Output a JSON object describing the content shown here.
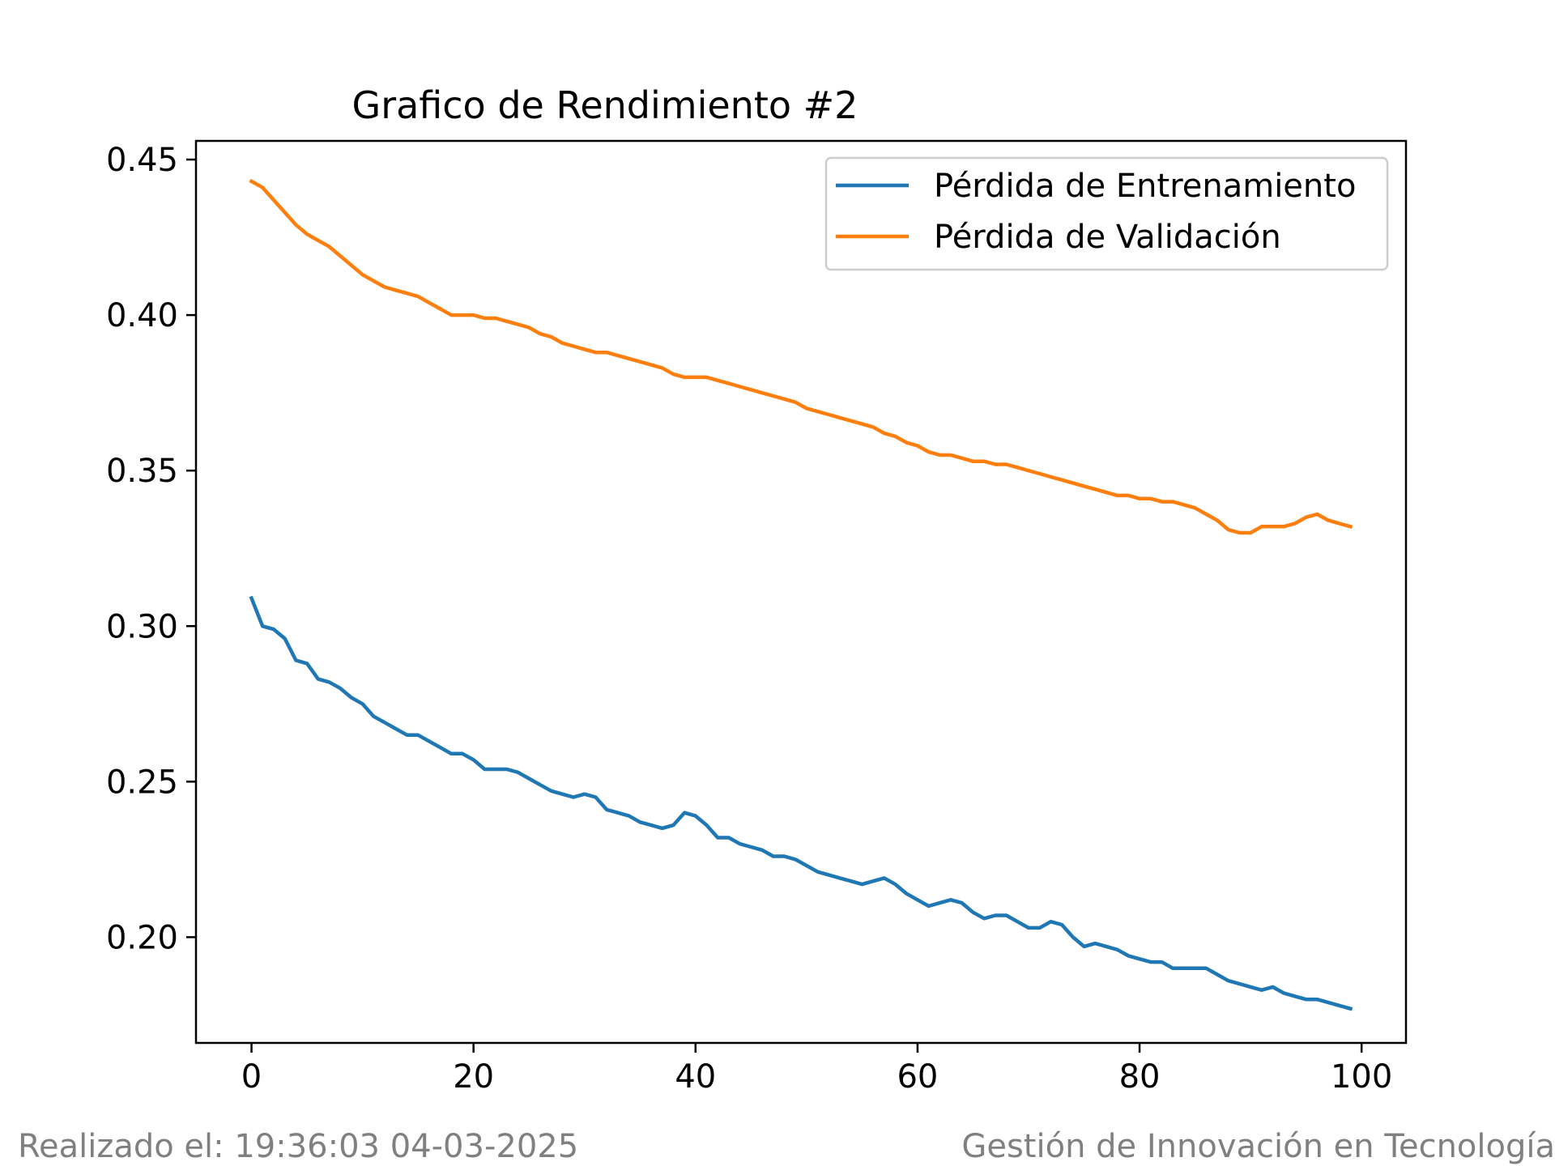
{
  "chart_data": {
    "type": "line",
    "title": "Grafico de Rendimiento #2",
    "xlabel": "",
    "ylabel": "",
    "xlim": [
      -5,
      104
    ],
    "ylim": [
      0.166,
      0.456
    ],
    "xticks": [
      0,
      20,
      40,
      60,
      80,
      100
    ],
    "yticks": [
      0.2,
      0.25,
      0.3,
      0.35,
      0.4,
      0.45
    ],
    "grid": false,
    "legend": "top-right",
    "x": [
      0,
      1,
      2,
      3,
      4,
      5,
      6,
      7,
      8,
      9,
      10,
      11,
      12,
      13,
      14,
      15,
      16,
      17,
      18,
      19,
      20,
      21,
      22,
      23,
      24,
      25,
      26,
      27,
      28,
      29,
      30,
      31,
      32,
      33,
      34,
      35,
      36,
      37,
      38,
      39,
      40,
      41,
      42,
      43,
      44,
      45,
      46,
      47,
      48,
      49,
      50,
      51,
      52,
      53,
      54,
      55,
      56,
      57,
      58,
      59,
      60,
      61,
      62,
      63,
      64,
      65,
      66,
      67,
      68,
      69,
      70,
      71,
      72,
      73,
      74,
      75,
      76,
      77,
      78,
      79,
      80,
      81,
      82,
      83,
      84,
      85,
      86,
      87,
      88,
      89,
      90,
      91,
      92,
      93,
      94,
      95,
      96,
      97,
      98,
      99
    ],
    "series": [
      {
        "name": "Pérdida de Entrenamiento",
        "color": "#1f77b4",
        "values": [
          0.309,
          0.3,
          0.299,
          0.296,
          0.289,
          0.288,
          0.283,
          0.282,
          0.28,
          0.277,
          0.275,
          0.271,
          0.269,
          0.267,
          0.265,
          0.265,
          0.263,
          0.261,
          0.259,
          0.259,
          0.257,
          0.254,
          0.254,
          0.254,
          0.253,
          0.251,
          0.249,
          0.247,
          0.246,
          0.245,
          0.246,
          0.245,
          0.241,
          0.24,
          0.239,
          0.237,
          0.236,
          0.235,
          0.236,
          0.24,
          0.239,
          0.236,
          0.232,
          0.232,
          0.23,
          0.229,
          0.228,
          0.226,
          0.226,
          0.225,
          0.223,
          0.221,
          0.22,
          0.219,
          0.218,
          0.217,
          0.218,
          0.219,
          0.217,
          0.214,
          0.212,
          0.21,
          0.211,
          0.212,
          0.211,
          0.208,
          0.206,
          0.207,
          0.207,
          0.205,
          0.203,
          0.203,
          0.205,
          0.204,
          0.2,
          0.197,
          0.198,
          0.197,
          0.196,
          0.194,
          0.193,
          0.192,
          0.192,
          0.19,
          0.19,
          0.19,
          0.19,
          0.188,
          0.186,
          0.185,
          0.184,
          0.183,
          0.184,
          0.182,
          0.181,
          0.18,
          0.18,
          0.179,
          0.178,
          0.177
        ]
      },
      {
        "name": "Pérdida de Validación",
        "color": "#ff7f0e",
        "values": [
          0.443,
          0.441,
          0.437,
          0.433,
          0.429,
          0.426,
          0.424,
          0.422,
          0.419,
          0.416,
          0.413,
          0.411,
          0.409,
          0.408,
          0.407,
          0.406,
          0.404,
          0.402,
          0.4,
          0.4,
          0.4,
          0.399,
          0.399,
          0.398,
          0.397,
          0.396,
          0.394,
          0.393,
          0.391,
          0.39,
          0.389,
          0.388,
          0.388,
          0.387,
          0.386,
          0.385,
          0.384,
          0.383,
          0.381,
          0.38,
          0.38,
          0.38,
          0.379,
          0.378,
          0.377,
          0.376,
          0.375,
          0.374,
          0.373,
          0.372,
          0.37,
          0.369,
          0.368,
          0.367,
          0.366,
          0.365,
          0.364,
          0.362,
          0.361,
          0.359,
          0.358,
          0.356,
          0.355,
          0.355,
          0.354,
          0.353,
          0.353,
          0.352,
          0.352,
          0.351,
          0.35,
          0.349,
          0.348,
          0.347,
          0.346,
          0.345,
          0.344,
          0.343,
          0.342,
          0.342,
          0.341,
          0.341,
          0.34,
          0.34,
          0.339,
          0.338,
          0.336,
          0.334,
          0.331,
          0.33,
          0.33,
          0.332,
          0.332,
          0.332,
          0.333,
          0.335,
          0.336,
          0.334,
          0.333,
          0.332
        ]
      }
    ]
  },
  "footer": {
    "timestamp": "Realizado el: 19:36:03 04-03-2025",
    "organization": "Gestión de Innovación en Tecnología"
  }
}
